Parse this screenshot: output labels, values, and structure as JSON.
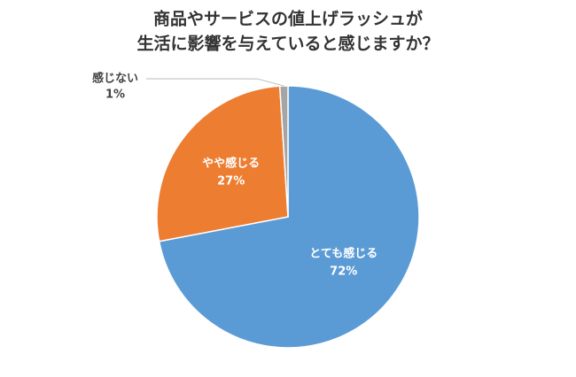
{
  "chart_data": {
    "type": "pie",
    "title": [
      "商品やサービスの値上げラッシュが",
      "生活に影響を与えていると感じますか？"
    ],
    "categories": [
      "とても感じる",
      "やや感じる",
      "感じない"
    ],
    "values": [
      72,
      27,
      1
    ],
    "value_labels": [
      "72%",
      "27%",
      "1%"
    ],
    "colors": [
      "#5b9bd5",
      "#ed7d31",
      "#a5a5a5"
    ]
  }
}
